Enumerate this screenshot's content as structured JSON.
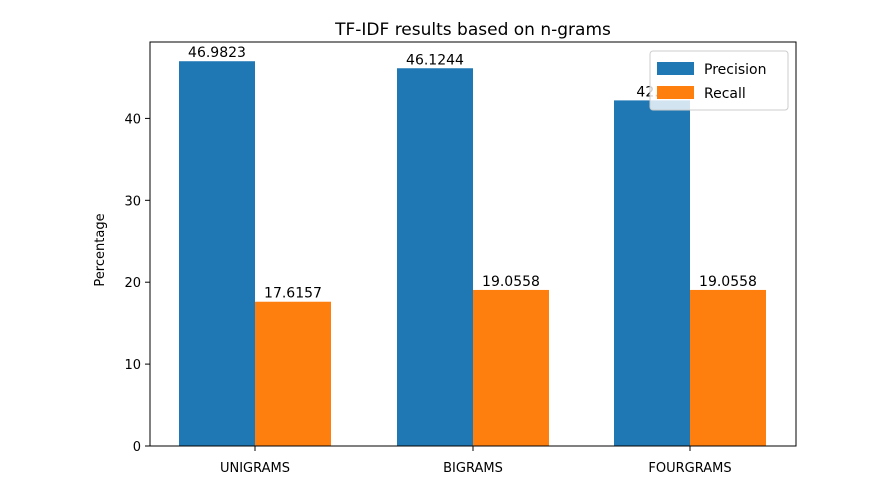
{
  "chart_data": {
    "type": "bar",
    "title": "TF-IDF results based on n-grams",
    "xlabel": "",
    "ylabel": "Percentage",
    "categories": [
      "UNIGRAMS",
      "BIGRAMS",
      "FOURGRAMS"
    ],
    "series": [
      {
        "name": "Precision",
        "color": "#1f77b4",
        "values": [
          46.9823,
          46.1244,
          42.2
        ],
        "labels": [
          "46.9823",
          "46.1244",
          "42.2"
        ]
      },
      {
        "name": "Recall",
        "color": "#ff7f0e",
        "values": [
          17.6157,
          19.0558,
          19.0558
        ],
        "labels": [
          "17.6157",
          "19.0558",
          "19.0558"
        ]
      }
    ],
    "ylim": [
      0,
      49.33
    ],
    "yticks": [
      "0",
      "10",
      "20",
      "30",
      "40"
    ],
    "grid": false,
    "legend": "top-right"
  }
}
